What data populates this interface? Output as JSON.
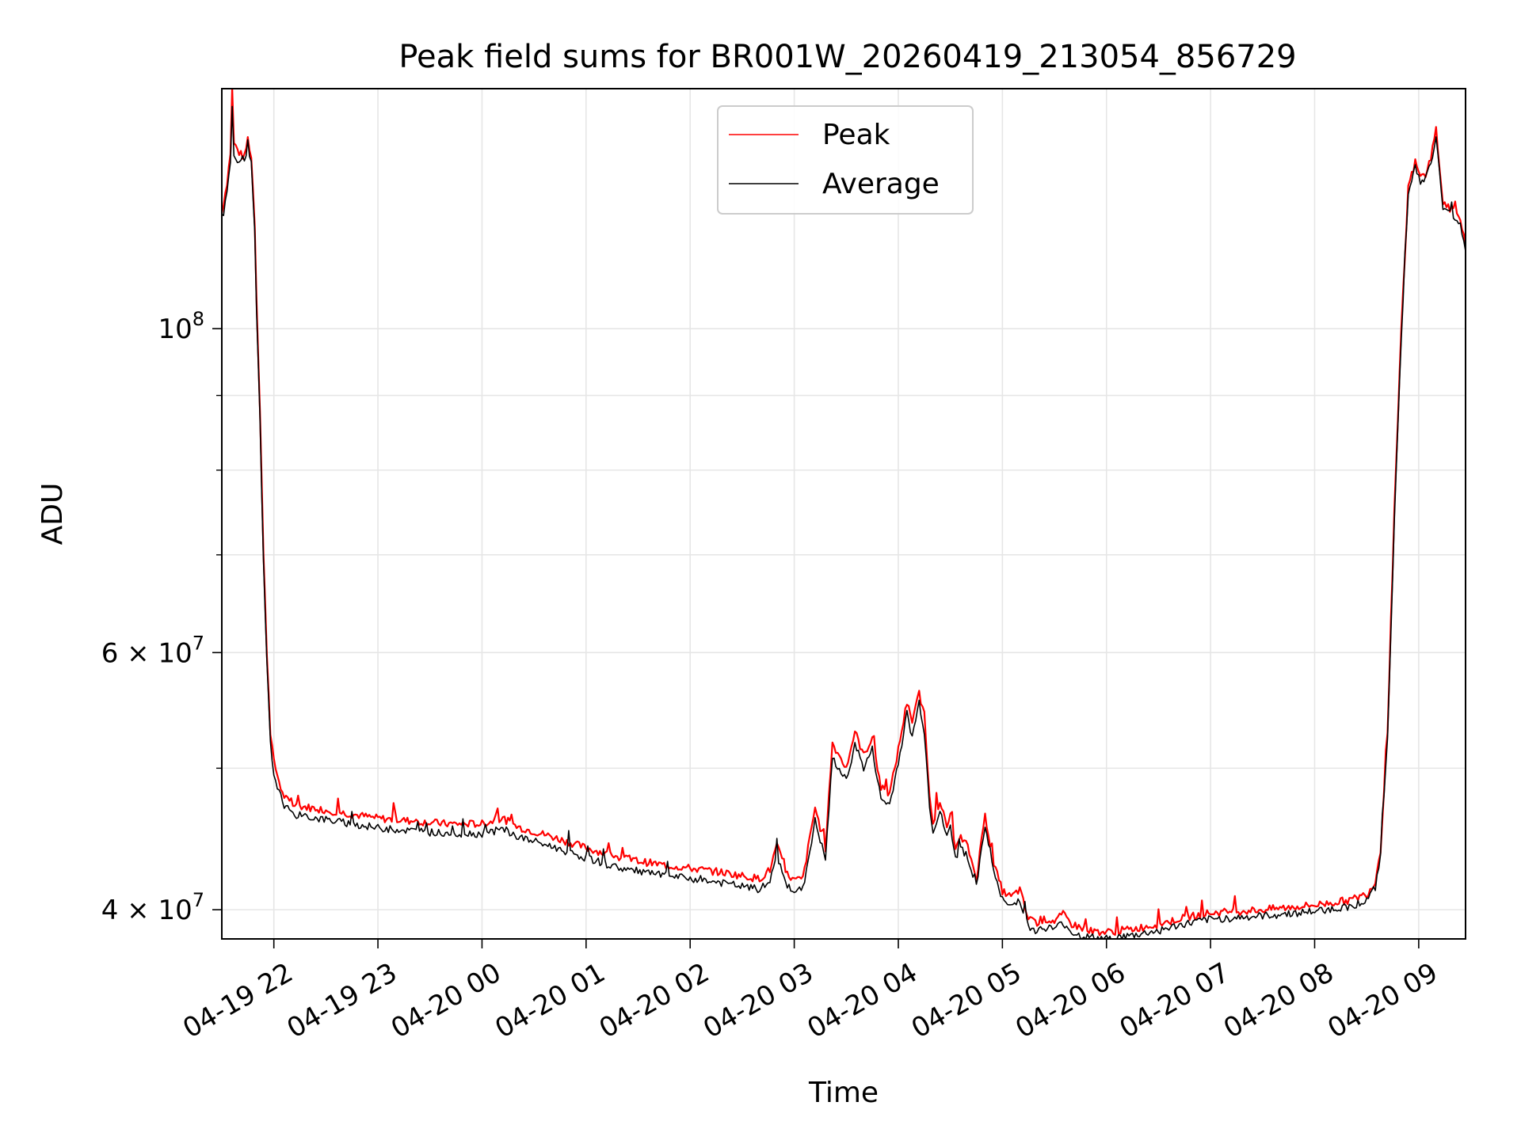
{
  "chart_data": {
    "type": "line",
    "title": "Peak field sums for BR001W_20260419_213054_856729",
    "xlabel": "Time",
    "ylabel": "ADU",
    "x_scale": "time",
    "y_scale": "log",
    "xlim": [
      "2026-04-19 21:30",
      "2026-04-20 09:27"
    ],
    "ylim": [
      38200000,
      146000000
    ],
    "grid": true,
    "legend_position": "upper center",
    "x_ticks": [
      {
        "value": "2026-04-19 22:00",
        "label": "04-19 22"
      },
      {
        "value": "2026-04-19 23:00",
        "label": "04-19 23"
      },
      {
        "value": "2026-04-20 00:00",
        "label": "04-20 00"
      },
      {
        "value": "2026-04-20 01:00",
        "label": "04-20 01"
      },
      {
        "value": "2026-04-20 02:00",
        "label": "04-20 02"
      },
      {
        "value": "2026-04-20 03:00",
        "label": "04-20 03"
      },
      {
        "value": "2026-04-20 04:00",
        "label": "04-20 04"
      },
      {
        "value": "2026-04-20 05:00",
        "label": "04-20 05"
      },
      {
        "value": "2026-04-20 06:00",
        "label": "04-20 06"
      },
      {
        "value": "2026-04-20 07:00",
        "label": "04-20 07"
      },
      {
        "value": "2026-04-20 08:00",
        "label": "04-20 08"
      },
      {
        "value": "2026-04-20 09:00",
        "label": "04-20 09"
      }
    ],
    "y_major_ticks": [
      {
        "value": 40000000,
        "base": "4 × 10",
        "exp": "7"
      },
      {
        "value": 60000000,
        "base": "6 × 10",
        "exp": "7"
      },
      {
        "value": 100000000,
        "base": "10",
        "exp": "8"
      }
    ],
    "y_minor_ticks": [
      50000000,
      70000000,
      80000000,
      90000000
    ],
    "series": [
      {
        "name": "Peak",
        "color": "#ff0000",
        "x": [
          "2026-04-19 21:30",
          "2026-04-19 21:33",
          "2026-04-19 21:35",
          "2026-04-19 21:36",
          "2026-04-19 21:37",
          "2026-04-19 21:40",
          "2026-04-19 21:43",
          "2026-04-19 21:44",
          "2026-04-19 21:45",
          "2026-04-19 21:47",
          "2026-04-19 21:49",
          "2026-04-19 21:50",
          "2026-04-19 21:52",
          "2026-04-19 21:54",
          "2026-04-19 21:56",
          "2026-04-19 21:58",
          "2026-04-19 22:00",
          "2026-04-19 22:05",
          "2026-04-19 22:10",
          "2026-04-19 22:20",
          "2026-04-19 22:30",
          "2026-04-19 22:45",
          "2026-04-19 23:00",
          "2026-04-19 23:20",
          "2026-04-19 23:40",
          "2026-04-20 00:00",
          "2026-04-20 00:12",
          "2026-04-20 00:20",
          "2026-04-20 00:40",
          "2026-04-20 01:00",
          "2026-04-20 01:20",
          "2026-04-20 01:40",
          "2026-04-20 02:00",
          "2026-04-20 02:20",
          "2026-04-20 02:40",
          "2026-04-20 02:46",
          "2026-04-20 02:50",
          "2026-04-20 02:55",
          "2026-04-20 03:00",
          "2026-04-20 03:05",
          "2026-04-20 03:12",
          "2026-04-20 03:18",
          "2026-04-20 03:22",
          "2026-04-20 03:30",
          "2026-04-20 03:35",
          "2026-04-20 03:40",
          "2026-04-20 03:45",
          "2026-04-20 03:50",
          "2026-04-20 03:55",
          "2026-04-20 04:00",
          "2026-04-20 04:05",
          "2026-04-20 04:08",
          "2026-04-20 04:12",
          "2026-04-20 04:15",
          "2026-04-20 04:18",
          "2026-04-20 04:20",
          "2026-04-20 04:24",
          "2026-04-20 04:28",
          "2026-04-20 04:30",
          "2026-04-20 04:33",
          "2026-04-20 04:36",
          "2026-04-20 04:40",
          "2026-04-20 04:45",
          "2026-04-20 04:50",
          "2026-04-20 04:55",
          "2026-04-20 05:00",
          "2026-04-20 05:05",
          "2026-04-20 05:10",
          "2026-04-20 05:15",
          "2026-04-20 05:20",
          "2026-04-20 05:25",
          "2026-04-20 05:30",
          "2026-04-20 05:35",
          "2026-04-20 05:40",
          "2026-04-20 05:45",
          "2026-04-20 05:50",
          "2026-04-20 06:00",
          "2026-04-20 06:15",
          "2026-04-20 06:30",
          "2026-04-20 06:45",
          "2026-04-20 07:00",
          "2026-04-20 07:30",
          "2026-04-20 08:00",
          "2026-04-20 08:20",
          "2026-04-20 08:30",
          "2026-04-20 08:35",
          "2026-04-20 08:38",
          "2026-04-20 08:42",
          "2026-04-20 08:46",
          "2026-04-20 08:50",
          "2026-04-20 08:54",
          "2026-04-20 08:58",
          "2026-04-20 09:01",
          "2026-04-20 09:04",
          "2026-04-20 09:07",
          "2026-04-20 09:10",
          "2026-04-20 09:12",
          "2026-04-20 09:14",
          "2026-04-20 09:17",
          "2026-04-20 09:20",
          "2026-04-20 09:24",
          "2026-04-20 09:27"
        ],
        "values": [
          120000000,
          126000000,
          132000000,
          146000000,
          134000000,
          132000000,
          131000000,
          133000000,
          135000000,
          131000000,
          118000000,
          105000000,
          88000000,
          70000000,
          60000000,
          53000000,
          50500000,
          48000000,
          47200000,
          47000000,
          46800000,
          46500000,
          46200000,
          46000000,
          45800000,
          45800000,
          46200000,
          45600000,
          44900000,
          44100000,
          43400000,
          43000000,
          42700000,
          42400000,
          42000000,
          42600000,
          44300000,
          42400000,
          41900000,
          42000000,
          47000000,
          44100000,
          52000000,
          50000000,
          53000000,
          51000000,
          52500000,
          48500000,
          48000000,
          51500000,
          55500000,
          53500000,
          56500000,
          54000000,
          48000000,
          46000000,
          47500000,
          45500000,
          46500000,
          44000000,
          44800000,
          44200000,
          42000000,
          46500000,
          43000000,
          41200000,
          40800000,
          41300000,
          39400000,
          39200000,
          39400000,
          39300000,
          39700000,
          39100000,
          38900000,
          38700000,
          38600000,
          38800000,
          39100000,
          39500000,
          39800000,
          40000000,
          40300000,
          40600000,
          41000000,
          41800000,
          44000000,
          53000000,
          75000000,
          100000000,
          125000000,
          130000000,
          127000000,
          127500000,
          131000000,
          137000000,
          129000000,
          122000000,
          121000000,
          120500000,
          119000000,
          114000000
        ]
      },
      {
        "name": "Average",
        "color": "#000000",
        "x": [
          "2026-04-19 21:30",
          "2026-04-19 21:33",
          "2026-04-19 21:35",
          "2026-04-19 21:36",
          "2026-04-19 21:37",
          "2026-04-19 21:40",
          "2026-04-19 21:43",
          "2026-04-19 21:44",
          "2026-04-19 21:45",
          "2026-04-19 21:47",
          "2026-04-19 21:49",
          "2026-04-19 21:50",
          "2026-04-19 21:52",
          "2026-04-19 21:54",
          "2026-04-19 21:56",
          "2026-04-19 21:58",
          "2026-04-19 22:00",
          "2026-04-19 22:05",
          "2026-04-19 22:10",
          "2026-04-19 22:20",
          "2026-04-19 22:30",
          "2026-04-19 22:45",
          "2026-04-19 23:00",
          "2026-04-19 23:20",
          "2026-04-19 23:40",
          "2026-04-20 00:00",
          "2026-04-20 00:12",
          "2026-04-20 00:20",
          "2026-04-20 00:40",
          "2026-04-20 01:00",
          "2026-04-20 01:20",
          "2026-04-20 01:40",
          "2026-04-20 02:00",
          "2026-04-20 02:20",
          "2026-04-20 02:40",
          "2026-04-20 02:46",
          "2026-04-20 02:50",
          "2026-04-20 02:55",
          "2026-04-20 03:00",
          "2026-04-20 03:05",
          "2026-04-20 03:12",
          "2026-04-20 03:18",
          "2026-04-20 03:22",
          "2026-04-20 03:30",
          "2026-04-20 03:35",
          "2026-04-20 03:40",
          "2026-04-20 03:45",
          "2026-04-20 03:50",
          "2026-04-20 03:55",
          "2026-04-20 04:00",
          "2026-04-20 04:05",
          "2026-04-20 04:08",
          "2026-04-20 04:12",
          "2026-04-20 04:15",
          "2026-04-20 04:18",
          "2026-04-20 04:20",
          "2026-04-20 04:24",
          "2026-04-20 04:28",
          "2026-04-20 04:30",
          "2026-04-20 04:33",
          "2026-04-20 04:36",
          "2026-04-20 04:40",
          "2026-04-20 04:45",
          "2026-04-20 04:50",
          "2026-04-20 04:55",
          "2026-04-20 05:00",
          "2026-04-20 05:05",
          "2026-04-20 05:10",
          "2026-04-20 05:15",
          "2026-04-20 05:20",
          "2026-04-20 05:25",
          "2026-04-20 05:30",
          "2026-04-20 05:35",
          "2026-04-20 05:40",
          "2026-04-20 05:45",
          "2026-04-20 05:50",
          "2026-04-20 06:00",
          "2026-04-20 06:15",
          "2026-04-20 06:30",
          "2026-04-20 06:45",
          "2026-04-20 07:00",
          "2026-04-20 07:30",
          "2026-04-20 08:00",
          "2026-04-20 08:20",
          "2026-04-20 08:30",
          "2026-04-20 08:35",
          "2026-04-20 08:38",
          "2026-04-20 08:42",
          "2026-04-20 08:46",
          "2026-04-20 08:50",
          "2026-04-20 08:54",
          "2026-04-20 08:58",
          "2026-04-20 09:01",
          "2026-04-20 09:04",
          "2026-04-20 09:07",
          "2026-04-20 09:10",
          "2026-04-20 09:12",
          "2026-04-20 09:14",
          "2026-04-20 09:17",
          "2026-04-20 09:20",
          "2026-04-20 09:24",
          "2026-04-20 09:27"
        ],
        "values": [
          118000000,
          124000000,
          130000000,
          142000000,
          132000000,
          130000000,
          129500000,
          131500000,
          133000000,
          129500000,
          116000000,
          103000000,
          86500000,
          69000000,
          59000000,
          52000000,
          49500000,
          47400000,
          46500000,
          46300000,
          46100000,
          45800000,
          45500000,
          45300000,
          45100000,
          45100000,
          45400000,
          44900000,
          44200000,
          43400000,
          42700000,
          42300000,
          42000000,
          41700000,
          41300000,
          41800000,
          43500000,
          41700000,
          41200000,
          41300000,
          46000000,
          43300000,
          50800000,
          49000000,
          52000000,
          50000000,
          51500000,
          47600000,
          47200000,
          50500000,
          54500000,
          52500000,
          55500000,
          53000000,
          47200000,
          45300000,
          46700000,
          44800000,
          45700000,
          43300000,
          44100000,
          43500000,
          41400000,
          45700000,
          42400000,
          40600000,
          40200000,
          40700000,
          38900000,
          38700000,
          38900000,
          38800000,
          39200000,
          38600000,
          38400000,
          38300000,
          38200000,
          38400000,
          38700000,
          39100000,
          39400000,
          39600000,
          39900000,
          40200000,
          40600000,
          41400000,
          43600000,
          52500000,
          74000000,
          99000000,
          124000000,
          129000000,
          126000000,
          126500000,
          130000000,
          135000000,
          128000000,
          121000000,
          120000000,
          119500000,
          118000000,
          113000000
        ]
      }
    ]
  }
}
